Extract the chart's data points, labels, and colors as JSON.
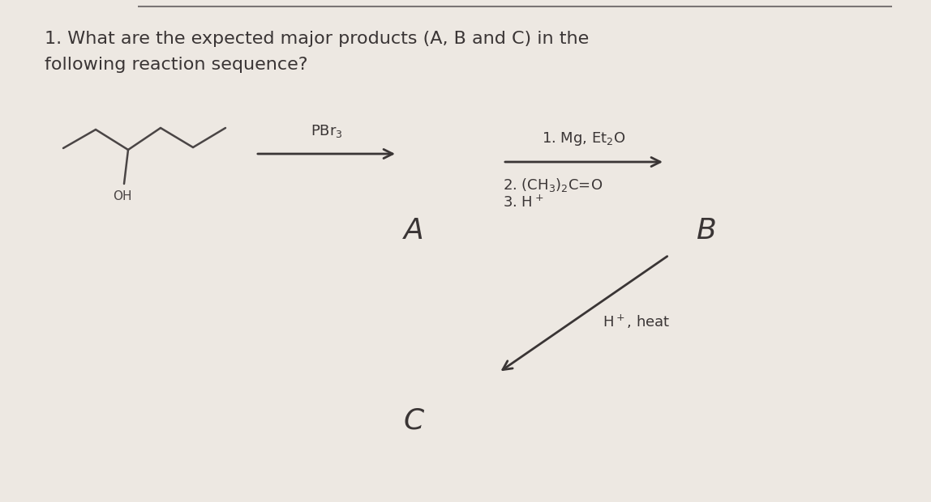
{
  "title_line1": "1. What are the expected major products (A, B and C) in the",
  "title_line2": "following reaction sequence?",
  "background_color": "#ede8e2",
  "text_color": "#3a3535",
  "title_fontsize": 16,
  "label_fontsize": 26,
  "reagent_fontsize": 13,
  "mol_color": "#4a4545",
  "top_line_color": "#7a7575",
  "reagent1": "PBr$_3$",
  "reagent2_line1": "1. Mg, Et$_2$O",
  "reagent2_line2": "2. (CH$_3$)$_2$C=O",
  "reagent2_line3": "3. H$^+$",
  "reagent3": "H$^+$, heat",
  "label_A": "A",
  "label_B": "B",
  "label_C": "C"
}
